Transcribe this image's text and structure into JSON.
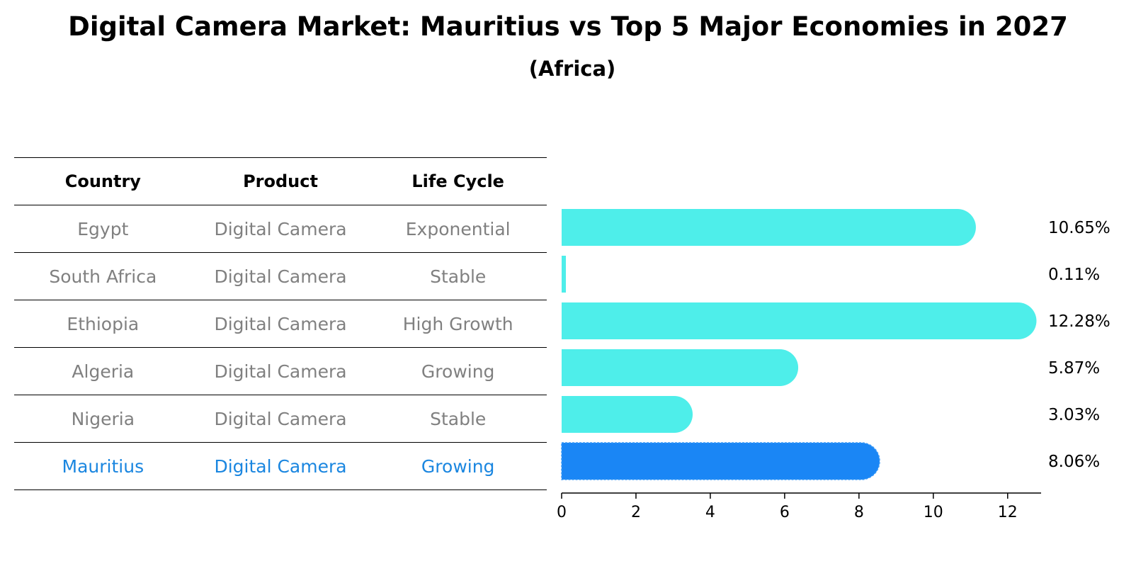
{
  "chart_data": {
    "type": "bar",
    "orientation": "horizontal",
    "title": "Digital Camera Market: Mauritius vs Top 5 Major Economies in 2027",
    "subtitle": "(Africa)",
    "table": {
      "headers": [
        "Country",
        "Product",
        "Life Cycle"
      ],
      "rows": [
        {
          "country": "Egypt",
          "product": "Digital Camera",
          "life_cycle": "Exponential"
        },
        {
          "country": "South Africa",
          "product": "Digital Camera",
          "life_cycle": "Stable"
        },
        {
          "country": "Ethiopia",
          "product": "Digital Camera",
          "life_cycle": "High Growth"
        },
        {
          "country": "Algeria",
          "product": "Digital Camera",
          "life_cycle": "Growing"
        },
        {
          "country": "Nigeria",
          "product": "Digital Camera",
          "life_cycle": "Stable"
        },
        {
          "country": "Mauritius",
          "product": "Digital Camera",
          "life_cycle": "Growing"
        }
      ]
    },
    "categories": [
      "Egypt",
      "South Africa",
      "Ethiopia",
      "Algeria",
      "Nigeria",
      "Mauritius"
    ],
    "values": [
      10.65,
      0.11,
      12.28,
      5.87,
      3.03,
      8.06
    ],
    "value_labels": [
      "10.65%",
      "0.11%",
      "12.28%",
      "5.87%",
      "3.03%",
      "8.06%"
    ],
    "highlight": "Mauritius",
    "xlim": [
      0,
      12.9
    ],
    "xticks": [
      0,
      2,
      4,
      6,
      8,
      10,
      12
    ],
    "xtick_labels": [
      "0",
      "2",
      "4",
      "6",
      "8",
      "10",
      "12"
    ],
    "colors": {
      "bar": "#4eeeea",
      "highlight": "#1a86f5",
      "muted_text": "#808080",
      "highlight_text": "#1a86e0"
    }
  }
}
